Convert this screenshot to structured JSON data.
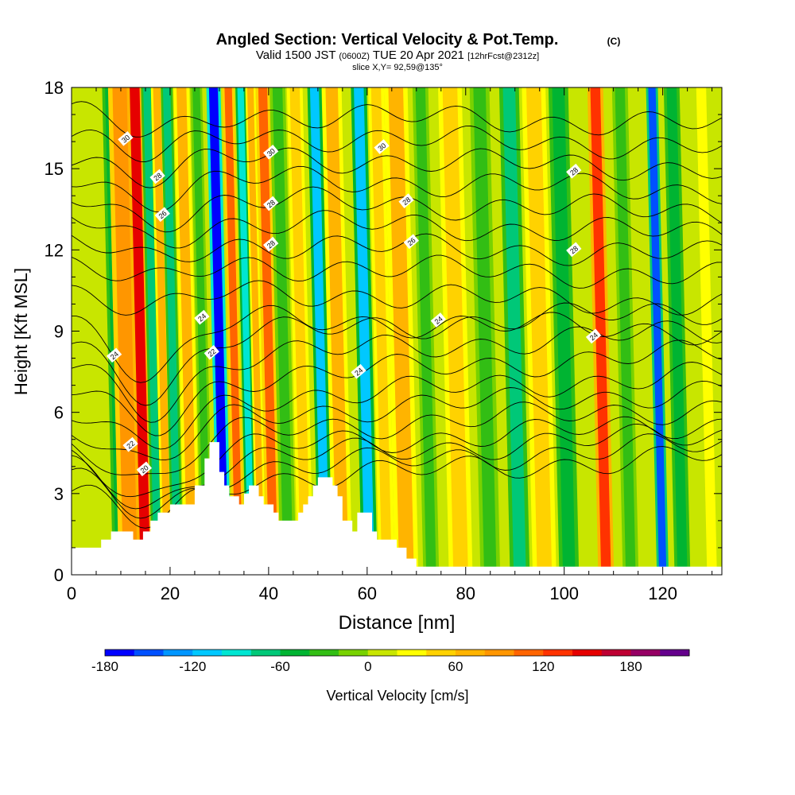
{
  "header": {
    "title": "Angled Section: Vertical Velocity & Pot.Temp.",
    "title_unit": "(C)",
    "valid_prefix": "Valid 1500 JST",
    "valid_z": "(0600Z)",
    "valid_date": "TUE 20 Apr 2021",
    "fcst": "[12hrFcst@2312z]",
    "slice": "slice X,Y= 92,59@135°"
  },
  "chart_data": {
    "type": "heatmap",
    "xlabel": "Distance [nm]",
    "ylabel": "Height [Kft MSL]",
    "xlim": [
      0,
      132
    ],
    "ylim": [
      0,
      18
    ],
    "x_ticks": [
      0,
      20,
      40,
      60,
      80,
      100,
      120
    ],
    "y_ticks": [
      0,
      3,
      6,
      9,
      12,
      15,
      18
    ],
    "colorbar": {
      "label": "Vertical Velocity [cm/s]",
      "min": -180,
      "step": 20,
      "tick_values": [
        -180,
        -120,
        -60,
        0,
        60,
        120,
        180
      ],
      "colors": [
        "#0000ff",
        "#0050ff",
        "#0096ff",
        "#00c8ff",
        "#00e6d2",
        "#00c878",
        "#00b432",
        "#32be14",
        "#78d200",
        "#c8e600",
        "#ffff00",
        "#ffd200",
        "#ffb400",
        "#ff9600",
        "#ff6400",
        "#ff3200",
        "#e60000",
        "#be0032",
        "#960064",
        "#64008c"
      ]
    },
    "vertical_velocity_bands": [
      {
        "x": 4,
        "w": 4,
        "value": 10
      },
      {
        "x": 10,
        "w": 2,
        "value": -50
      },
      {
        "x": 12,
        "w": 3,
        "value": 80
      },
      {
        "x": 15,
        "w": 2,
        "value": 140
      },
      {
        "x": 17.5,
        "w": 1.5,
        "value": -80
      },
      {
        "x": 19.5,
        "w": 1.5,
        "value": 60
      },
      {
        "x": 21.5,
        "w": 1.5,
        "value": -70
      },
      {
        "x": 24.5,
        "w": 2,
        "value": 70
      },
      {
        "x": 27.5,
        "w": 1.5,
        "value": -40
      },
      {
        "x": 31,
        "w": 1.8,
        "value": -170
      },
      {
        "x": 34,
        "w": 1.5,
        "value": 110
      },
      {
        "x": 36.5,
        "w": 1.3,
        "value": -90
      },
      {
        "x": 38.5,
        "w": 1.3,
        "value": 70
      },
      {
        "x": 41,
        "w": 1.8,
        "value": 110
      },
      {
        "x": 44,
        "w": 2,
        "value": -40
      },
      {
        "x": 47.5,
        "w": 2,
        "value": 50
      },
      {
        "x": 51.5,
        "w": 1.8,
        "value": -110
      },
      {
        "x": 55,
        "w": 2.5,
        "value": 60
      },
      {
        "x": 60.5,
        "w": 2,
        "value": -120
      },
      {
        "x": 64,
        "w": 2,
        "value": 40
      },
      {
        "x": 68,
        "w": 3,
        "value": 60
      },
      {
        "x": 73,
        "w": 2,
        "value": -30
      },
      {
        "x": 79,
        "w": 3,
        "value": 40
      },
      {
        "x": 85,
        "w": 2.5,
        "value": -40
      },
      {
        "x": 91,
        "w": 2.5,
        "value": -80
      },
      {
        "x": 96,
        "w": 3,
        "value": 40
      },
      {
        "x": 101,
        "w": 2.5,
        "value": -50
      },
      {
        "x": 108.5,
        "w": 2,
        "value": 120
      },
      {
        "x": 113.5,
        "w": 2,
        "value": -40
      },
      {
        "x": 120,
        "w": 1.5,
        "value": -160
      },
      {
        "x": 124,
        "w": 2,
        "value": -60
      },
      {
        "x": 130,
        "w": 2,
        "value": 30
      }
    ],
    "terrain": [
      [
        0,
        1
      ],
      [
        6,
        1
      ],
      [
        6,
        1.3
      ],
      [
        8,
        1.3
      ],
      [
        8,
        1.6
      ],
      [
        12.5,
        1.6
      ],
      [
        12.5,
        1.3
      ],
      [
        14.5,
        1.3
      ],
      [
        14.5,
        1.6
      ],
      [
        16,
        1.6
      ],
      [
        16,
        2
      ],
      [
        17.5,
        2
      ],
      [
        17.5,
        2.3
      ],
      [
        20,
        2.3
      ],
      [
        20,
        2.6
      ],
      [
        25,
        2.6
      ],
      [
        25,
        3.3
      ],
      [
        27,
        3.3
      ],
      [
        27,
        4.3
      ],
      [
        28,
        4.3
      ],
      [
        28,
        4.9
      ],
      [
        30,
        4.9
      ],
      [
        30,
        3.8
      ],
      [
        31,
        3.8
      ],
      [
        31,
        3.3
      ],
      [
        32,
        3.3
      ],
      [
        32,
        2.9
      ],
      [
        34,
        2.9
      ],
      [
        34,
        2.6
      ],
      [
        35,
        2.6
      ],
      [
        35,
        3
      ],
      [
        36,
        3
      ],
      [
        36,
        3.3
      ],
      [
        38,
        3.3
      ],
      [
        38,
        2.9
      ],
      [
        39,
        2.9
      ],
      [
        39,
        2.6
      ],
      [
        41,
        2.6
      ],
      [
        41,
        2.3
      ],
      [
        42,
        2.3
      ],
      [
        42,
        2
      ],
      [
        46,
        2
      ],
      [
        46,
        2.3
      ],
      [
        47,
        2.3
      ],
      [
        47,
        2.6
      ],
      [
        48,
        2.6
      ],
      [
        48,
        2.9
      ],
      [
        49,
        2.9
      ],
      [
        49,
        3.3
      ],
      [
        50,
        3.3
      ],
      [
        50,
        3.6
      ],
      [
        53,
        3.6
      ],
      [
        53,
        3.3
      ],
      [
        54,
        3.3
      ],
      [
        54,
        2.9
      ],
      [
        55,
        2.9
      ],
      [
        55,
        2
      ],
      [
        57,
        2
      ],
      [
        57,
        1.6
      ],
      [
        58,
        1.6
      ],
      [
        58,
        2.3
      ],
      [
        61,
        2.3
      ],
      [
        61,
        1.6
      ],
      [
        62,
        1.6
      ],
      [
        62,
        1.3
      ],
      [
        66,
        1.3
      ],
      [
        66,
        1
      ],
      [
        68,
        1
      ],
      [
        68,
        0.6
      ],
      [
        70,
        0.6
      ],
      [
        70,
        0.3
      ],
      [
        132,
        0.3
      ],
      [
        132,
        0
      ],
      [
        0,
        0
      ]
    ],
    "theta_contours": [
      {
        "label": "30",
        "label_points": [
          [
            11,
            16.1
          ],
          [
            40.5,
            15.6
          ],
          [
            63,
            15.8
          ]
        ]
      },
      {
        "label": "28",
        "label_points": [
          [
            17.5,
            14.7
          ],
          [
            40.5,
            13.7
          ],
          [
            68,
            13.8
          ],
          [
            102,
            14.9
          ],
          [
            40.5,
            12.2
          ],
          [
            102,
            12.0
          ]
        ]
      },
      {
        "label": "26",
        "label_points": [
          [
            18.5,
            13.3
          ],
          [
            69,
            12.3
          ]
        ]
      },
      {
        "label": "24",
        "label_points": [
          [
            26.5,
            9.5
          ],
          [
            74.5,
            9.4
          ],
          [
            8.7,
            8.1
          ],
          [
            58.3,
            7.5
          ],
          [
            106,
            8.8
          ]
        ]
      },
      {
        "label": "22",
        "label_points": [
          [
            28.5,
            8.2
          ],
          [
            12,
            4.8
          ]
        ]
      },
      {
        "label": "20",
        "label_points": [
          [
            14.8,
            3.9
          ]
        ]
      }
    ]
  }
}
